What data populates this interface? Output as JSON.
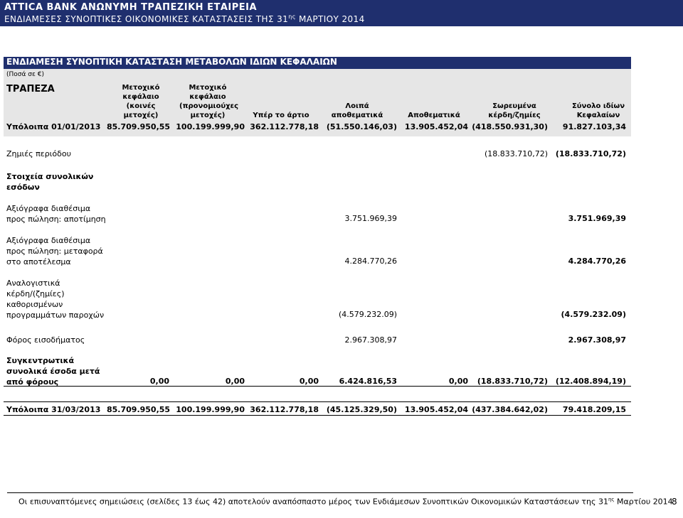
{
  "header": {
    "company": "ATTICA BANK ΑΝΩΝΥΜΗ ΤΡΑΠΕΖΙΚΗ ΕΤΑΙΡΕΙΑ",
    "subtitle_pre": "ΕΝΔΙΑΜΕΣΕΣ ΣΥΝΟΠΤΙΚΕΣ ΟΙΚΟΝΟΜΙΚΕΣ ΚΑΤΑΣΤΑΣΕΙΣ ΤΗΣ 31",
    "subtitle_sup": "ης",
    "subtitle_post": " ΜΑΡΤΙΟΥ 2014"
  },
  "statement": {
    "title": "ΕΝΔΙΑΜΕΣΗ ΣΥΝΟΠΤΙΚΗ ΚΑΤΑΣΤΑΣΗ ΜΕΤΑΒΟΛΩΝ ΙΔΙΩΝ ΚΕΦΑΛΑΙΩΝ",
    "currency": "(Ποσά σε €)",
    "entity": "ΤΡΑΠΕΖΑ"
  },
  "columns": {
    "c1": [
      "Μετοχικό",
      "κεφάλαιο",
      "(κοινές",
      "μετοχές)"
    ],
    "c2": [
      "Μετοχικό",
      "κεφάλαιο",
      "(προνομιούχες",
      "μετοχές)"
    ],
    "c3": [
      "Υπέρ το άρτιο"
    ],
    "c4": [
      "Λοιπά",
      "αποθεματικά"
    ],
    "c5": [
      "Αποθεματικά"
    ],
    "c6": [
      "Σωρευμένα",
      "κέρδη/ζημίες"
    ],
    "c7": [
      "Σύνολο ιδίων",
      "Κεφαλαίων"
    ]
  },
  "opening": {
    "label": "Υπόλοιπα 01/01/2013",
    "v1": "85.709.950,55",
    "v2": "100.199.999,90",
    "v3": "362.112.778,18",
    "v4": "(51.550.146,03)",
    "v5": "13.905.452,04",
    "v6": "(418.550.931,30)",
    "v7": "91.827.103,34"
  },
  "loss": {
    "label": "Ζημιές περιόδου",
    "v6": "(18.833.710,72)",
    "v7": "(18.833.710,72)"
  },
  "oci_heading": [
    "Στοιχεία συνολικών",
    "εσόδων"
  ],
  "afs_valuation": {
    "label": [
      "Αξιόγραφα διαθέσιμα",
      "προς πώληση: αποτίμηση"
    ],
    "v4": "3.751.969,39",
    "v7": "3.751.969,39"
  },
  "afs_transfer": {
    "label": [
      "Αξιόγραφα διαθέσιμα",
      "προς πώληση: μεταφορά",
      "στο αποτέλεσμα"
    ],
    "v4": "4.284.770,26",
    "v7": "4.284.770,26"
  },
  "actuarial": {
    "label": [
      "Αναλογιστικά",
      "κέρδη/(ζημίες)",
      "καθορισμένων",
      "προγραμμάτων παροχών"
    ],
    "v4": "(4.579.232.09)",
    "v7": "(4.579.232.09)"
  },
  "tax": {
    "label": "Φόρος εισοδήματος",
    "v4": "2.967.308,97",
    "v7": "2.967.308,97"
  },
  "total_ci": {
    "label": [
      "Συγκεντρωτικά",
      "συνολικά έσοδα μετά",
      "από φόρους"
    ],
    "v1": "0,00",
    "v2": "0,00",
    "v3": "0,00",
    "v4": "6.424.816,53",
    "v5": "0,00",
    "v6": "(18.833.710,72)",
    "v7": "(12.408.894,19)"
  },
  "closing": {
    "label": "Υπόλοιπα 31/03/2013",
    "v1": "85.709.950,55",
    "v2": "100.199.999,90",
    "v3": "362.112.778,18",
    "v4": "(45.125.329,50)",
    "v5": "13.905.452,04",
    "v6": "(437.384.642,02)",
    "v7": "79.418.209,15"
  },
  "footer": {
    "note_pre": "Οι επισυναπτόμενες σημειώσεις (σελίδες 13 έως 42) αποτελούν αναπόσπαστο μέρος των Ενδιάμεσων Συνοπτικών  Οικονομικών Καταστάσεων της 31",
    "note_sup": "ης",
    "note_post": " Μαρτίου 2014",
    "page": "8"
  }
}
